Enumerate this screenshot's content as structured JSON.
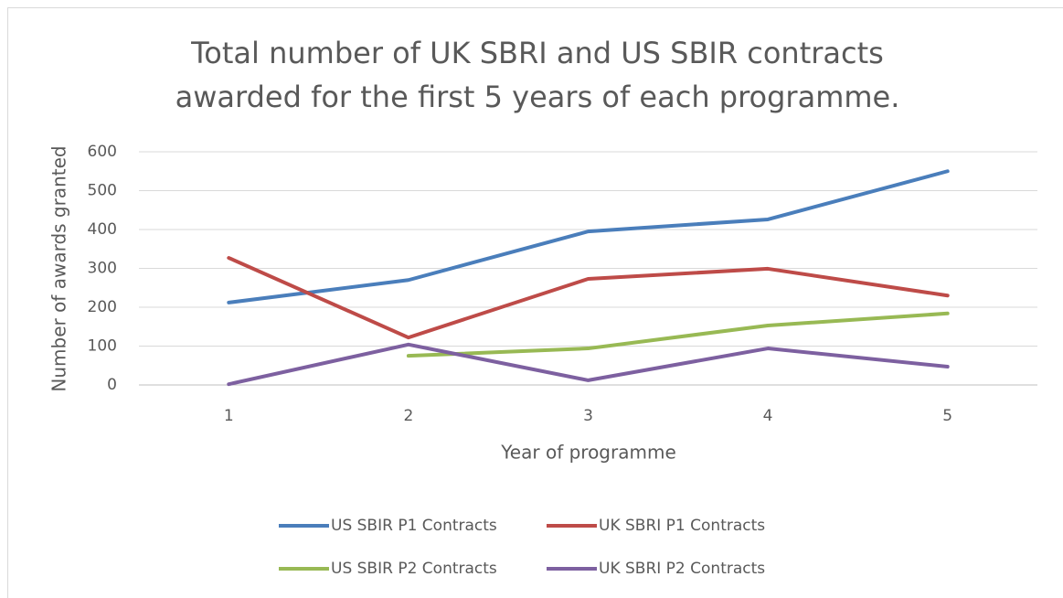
{
  "chart_data": {
    "type": "line",
    "title": [
      "Total number of UK SBRI and US SBIR contracts",
      "awarded for the first 5 years of each programme."
    ],
    "x_label": "Year of programme",
    "y_label": "Number of awards granted",
    "categories": [
      "1",
      "2",
      "3",
      "4",
      "5"
    ],
    "series": [
      {
        "name": "US SBIR P1 Contracts",
        "color": "#4a7ebb",
        "values": [
          212,
          270,
          395,
          426,
          550
        ]
      },
      {
        "name": "UK SBRI P1 Contracts",
        "color": "#be4b48",
        "values": [
          327,
          122,
          273,
          299,
          230
        ]
      },
      {
        "name": "US SBIR P2 Contracts",
        "color": "#98b954",
        "values": [
          null,
          75,
          94,
          153,
          184
        ]
      },
      {
        "name": "UK SBRI P2 Contracts",
        "color": "#7d60a0",
        "values": [
          2,
          104,
          12,
          94,
          47
        ]
      }
    ],
    "ylim": [
      0,
      600
    ],
    "yticks": [
      0,
      100,
      200,
      300,
      400,
      500,
      600
    ],
    "grid": true,
    "legend": "bottom"
  }
}
